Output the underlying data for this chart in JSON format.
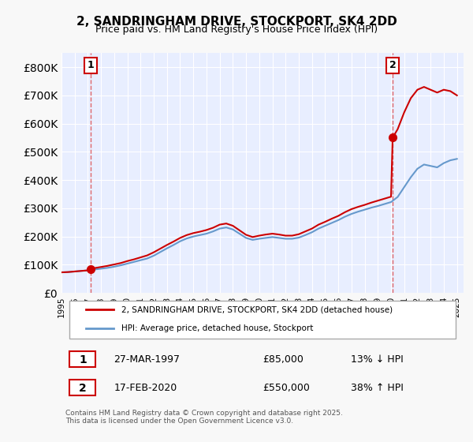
{
  "title": "2, SANDRINGHAM DRIVE, STOCKPORT, SK4 2DD",
  "subtitle": "Price paid vs. HM Land Registry's House Price Index (HPI)",
  "ylabel": "",
  "ylim": [
    0,
    850000
  ],
  "yticks": [
    0,
    100000,
    200000,
    300000,
    400000,
    500000,
    600000,
    700000,
    800000
  ],
  "ytick_labels": [
    "£0",
    "£100K",
    "£200K",
    "£300K",
    "£400K",
    "£500K",
    "£600K",
    "£700K",
    "£800K"
  ],
  "xlim_start": 1995.0,
  "xlim_end": 2025.5,
  "background_color": "#f0f4ff",
  "plot_bg_color": "#e8eeff",
  "sale1_date": 1997.23,
  "sale1_price": 85000,
  "sale1_label": "1",
  "sale2_date": 2020.12,
  "sale2_price": 550000,
  "sale2_label": "2",
  "house_color": "#cc0000",
  "hpi_color": "#6699cc",
  "grid_color": "#ffffff",
  "vline_color": "#dd4444",
  "legend_house": "2, SANDRINGHAM DRIVE, STOCKPORT, SK4 2DD (detached house)",
  "legend_hpi": "HPI: Average price, detached house, Stockport",
  "table_row1": [
    "1",
    "27-MAR-1997",
    "£85,000",
    "13% ↓ HPI"
  ],
  "table_row2": [
    "2",
    "17-FEB-2020",
    "£550,000",
    "38% ↑ HPI"
  ],
  "footnote": "Contains HM Land Registry data © Crown copyright and database right 2025.\nThis data is licensed under the Open Government Licence v3.0.",
  "hpi_years": [
    1995,
    1995.5,
    1996,
    1996.5,
    1997,
    1997.5,
    1998,
    1998.5,
    1999,
    1999.5,
    2000,
    2000.5,
    2001,
    2001.5,
    2002,
    2002.5,
    2003,
    2003.5,
    2004,
    2004.5,
    2005,
    2005.5,
    2006,
    2006.5,
    2007,
    2007.5,
    2008,
    2008.5,
    2009,
    2009.5,
    2010,
    2010.5,
    2011,
    2011.5,
    2012,
    2012.5,
    2013,
    2013.5,
    2014,
    2014.5,
    2015,
    2015.5,
    2016,
    2016.5,
    2017,
    2017.5,
    2018,
    2018.5,
    2019,
    2019.5,
    2020,
    2020.5,
    2021,
    2021.5,
    2022,
    2022.5,
    2023,
    2023.5,
    2024,
    2024.5,
    2025
  ],
  "hpi_values": [
    73000,
    74000,
    76000,
    78000,
    80000,
    83000,
    86000,
    89000,
    93000,
    98000,
    104000,
    110000,
    116000,
    122000,
    132000,
    145000,
    158000,
    170000,
    183000,
    193000,
    200000,
    205000,
    210000,
    218000,
    228000,
    232000,
    225000,
    210000,
    195000,
    188000,
    192000,
    195000,
    198000,
    195000,
    192000,
    192000,
    196000,
    205000,
    215000,
    228000,
    238000,
    248000,
    258000,
    270000,
    280000,
    288000,
    295000,
    302000,
    308000,
    315000,
    322000,
    340000,
    375000,
    410000,
    440000,
    455000,
    450000,
    445000,
    460000,
    470000,
    475000
  ],
  "house_years": [
    1995,
    1995.5,
    1996,
    1996.5,
    1997,
    1997.23,
    1997.5,
    1998,
    1998.5,
    1999,
    1999.5,
    2000,
    2000.5,
    2001,
    2001.5,
    2002,
    2002.5,
    2003,
    2003.5,
    2004,
    2004.5,
    2005,
    2005.5,
    2006,
    2006.5,
    2007,
    2007.5,
    2008,
    2008.5,
    2009,
    2009.5,
    2010,
    2010.5,
    2011,
    2011.5,
    2012,
    2012.5,
    2013,
    2013.5,
    2014,
    2014.5,
    2015,
    2015.5,
    2016,
    2016.5,
    2017,
    2017.5,
    2018,
    2018.5,
    2019,
    2019.5,
    2020,
    2020.12,
    2020.5,
    2021,
    2021.5,
    2022,
    2022.5,
    2023,
    2023.5,
    2024,
    2024.5,
    2025
  ],
  "house_values": [
    73000,
    74000,
    76000,
    78000,
    80000,
    85000,
    88000,
    92000,
    96000,
    101000,
    106000,
    113000,
    119000,
    126000,
    133000,
    144000,
    157000,
    170000,
    182000,
    195000,
    205000,
    212000,
    217000,
    223000,
    231000,
    242000,
    246000,
    238000,
    222000,
    206000,
    198000,
    203000,
    207000,
    210000,
    207000,
    203000,
    203000,
    208000,
    218000,
    228000,
    242000,
    252000,
    263000,
    273000,
    286000,
    297000,
    305000,
    312000,
    320000,
    327000,
    334000,
    341000,
    550000,
    580000,
    640000,
    690000,
    720000,
    730000,
    720000,
    710000,
    720000,
    715000,
    700000
  ]
}
